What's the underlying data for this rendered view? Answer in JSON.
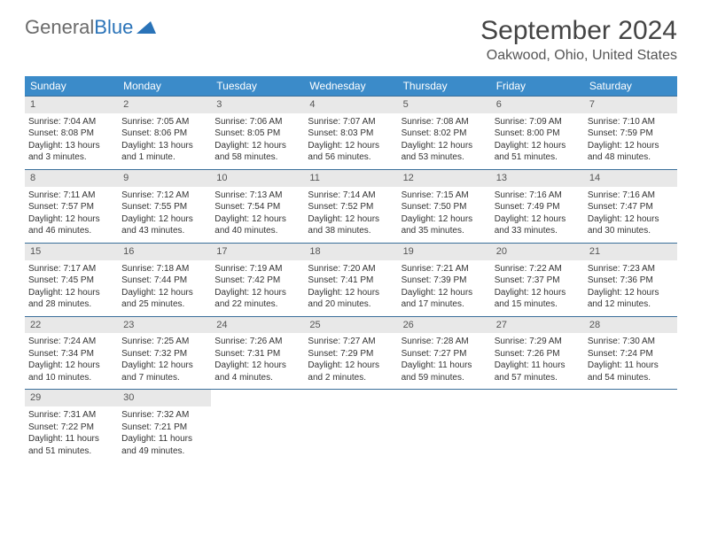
{
  "logo": {
    "text_gray": "General",
    "text_blue": "Blue"
  },
  "title": "September 2024",
  "location": "Oakwood, Ohio, United States",
  "colors": {
    "header_bg": "#3b8bc9",
    "header_text": "#ffffff",
    "row_border": "#3b6f9a",
    "daynum_bg": "#e8e8e8",
    "body_text": "#333333",
    "logo_blue": "#2a73b8",
    "logo_gray": "#6b6b6b"
  },
  "day_headers": [
    "Sunday",
    "Monday",
    "Tuesday",
    "Wednesday",
    "Thursday",
    "Friday",
    "Saturday"
  ],
  "weeks": [
    [
      {
        "num": "1",
        "sunrise": "Sunrise: 7:04 AM",
        "sunset": "Sunset: 8:08 PM",
        "daylight": "Daylight: 13 hours and 3 minutes."
      },
      {
        "num": "2",
        "sunrise": "Sunrise: 7:05 AM",
        "sunset": "Sunset: 8:06 PM",
        "daylight": "Daylight: 13 hours and 1 minute."
      },
      {
        "num": "3",
        "sunrise": "Sunrise: 7:06 AM",
        "sunset": "Sunset: 8:05 PM",
        "daylight": "Daylight: 12 hours and 58 minutes."
      },
      {
        "num": "4",
        "sunrise": "Sunrise: 7:07 AM",
        "sunset": "Sunset: 8:03 PM",
        "daylight": "Daylight: 12 hours and 56 minutes."
      },
      {
        "num": "5",
        "sunrise": "Sunrise: 7:08 AM",
        "sunset": "Sunset: 8:02 PM",
        "daylight": "Daylight: 12 hours and 53 minutes."
      },
      {
        "num": "6",
        "sunrise": "Sunrise: 7:09 AM",
        "sunset": "Sunset: 8:00 PM",
        "daylight": "Daylight: 12 hours and 51 minutes."
      },
      {
        "num": "7",
        "sunrise": "Sunrise: 7:10 AM",
        "sunset": "Sunset: 7:59 PM",
        "daylight": "Daylight: 12 hours and 48 minutes."
      }
    ],
    [
      {
        "num": "8",
        "sunrise": "Sunrise: 7:11 AM",
        "sunset": "Sunset: 7:57 PM",
        "daylight": "Daylight: 12 hours and 46 minutes."
      },
      {
        "num": "9",
        "sunrise": "Sunrise: 7:12 AM",
        "sunset": "Sunset: 7:55 PM",
        "daylight": "Daylight: 12 hours and 43 minutes."
      },
      {
        "num": "10",
        "sunrise": "Sunrise: 7:13 AM",
        "sunset": "Sunset: 7:54 PM",
        "daylight": "Daylight: 12 hours and 40 minutes."
      },
      {
        "num": "11",
        "sunrise": "Sunrise: 7:14 AM",
        "sunset": "Sunset: 7:52 PM",
        "daylight": "Daylight: 12 hours and 38 minutes."
      },
      {
        "num": "12",
        "sunrise": "Sunrise: 7:15 AM",
        "sunset": "Sunset: 7:50 PM",
        "daylight": "Daylight: 12 hours and 35 minutes."
      },
      {
        "num": "13",
        "sunrise": "Sunrise: 7:16 AM",
        "sunset": "Sunset: 7:49 PM",
        "daylight": "Daylight: 12 hours and 33 minutes."
      },
      {
        "num": "14",
        "sunrise": "Sunrise: 7:16 AM",
        "sunset": "Sunset: 7:47 PM",
        "daylight": "Daylight: 12 hours and 30 minutes."
      }
    ],
    [
      {
        "num": "15",
        "sunrise": "Sunrise: 7:17 AM",
        "sunset": "Sunset: 7:45 PM",
        "daylight": "Daylight: 12 hours and 28 minutes."
      },
      {
        "num": "16",
        "sunrise": "Sunrise: 7:18 AM",
        "sunset": "Sunset: 7:44 PM",
        "daylight": "Daylight: 12 hours and 25 minutes."
      },
      {
        "num": "17",
        "sunrise": "Sunrise: 7:19 AM",
        "sunset": "Sunset: 7:42 PM",
        "daylight": "Daylight: 12 hours and 22 minutes."
      },
      {
        "num": "18",
        "sunrise": "Sunrise: 7:20 AM",
        "sunset": "Sunset: 7:41 PM",
        "daylight": "Daylight: 12 hours and 20 minutes."
      },
      {
        "num": "19",
        "sunrise": "Sunrise: 7:21 AM",
        "sunset": "Sunset: 7:39 PM",
        "daylight": "Daylight: 12 hours and 17 minutes."
      },
      {
        "num": "20",
        "sunrise": "Sunrise: 7:22 AM",
        "sunset": "Sunset: 7:37 PM",
        "daylight": "Daylight: 12 hours and 15 minutes."
      },
      {
        "num": "21",
        "sunrise": "Sunrise: 7:23 AM",
        "sunset": "Sunset: 7:36 PM",
        "daylight": "Daylight: 12 hours and 12 minutes."
      }
    ],
    [
      {
        "num": "22",
        "sunrise": "Sunrise: 7:24 AM",
        "sunset": "Sunset: 7:34 PM",
        "daylight": "Daylight: 12 hours and 10 minutes."
      },
      {
        "num": "23",
        "sunrise": "Sunrise: 7:25 AM",
        "sunset": "Sunset: 7:32 PM",
        "daylight": "Daylight: 12 hours and 7 minutes."
      },
      {
        "num": "24",
        "sunrise": "Sunrise: 7:26 AM",
        "sunset": "Sunset: 7:31 PM",
        "daylight": "Daylight: 12 hours and 4 minutes."
      },
      {
        "num": "25",
        "sunrise": "Sunrise: 7:27 AM",
        "sunset": "Sunset: 7:29 PM",
        "daylight": "Daylight: 12 hours and 2 minutes."
      },
      {
        "num": "26",
        "sunrise": "Sunrise: 7:28 AM",
        "sunset": "Sunset: 7:27 PM",
        "daylight": "Daylight: 11 hours and 59 minutes."
      },
      {
        "num": "27",
        "sunrise": "Sunrise: 7:29 AM",
        "sunset": "Sunset: 7:26 PM",
        "daylight": "Daylight: 11 hours and 57 minutes."
      },
      {
        "num": "28",
        "sunrise": "Sunrise: 7:30 AM",
        "sunset": "Sunset: 7:24 PM",
        "daylight": "Daylight: 11 hours and 54 minutes."
      }
    ],
    [
      {
        "num": "29",
        "sunrise": "Sunrise: 7:31 AM",
        "sunset": "Sunset: 7:22 PM",
        "daylight": "Daylight: 11 hours and 51 minutes."
      },
      {
        "num": "30",
        "sunrise": "Sunrise: 7:32 AM",
        "sunset": "Sunset: 7:21 PM",
        "daylight": "Daylight: 11 hours and 49 minutes."
      },
      null,
      null,
      null,
      null,
      null
    ]
  ]
}
